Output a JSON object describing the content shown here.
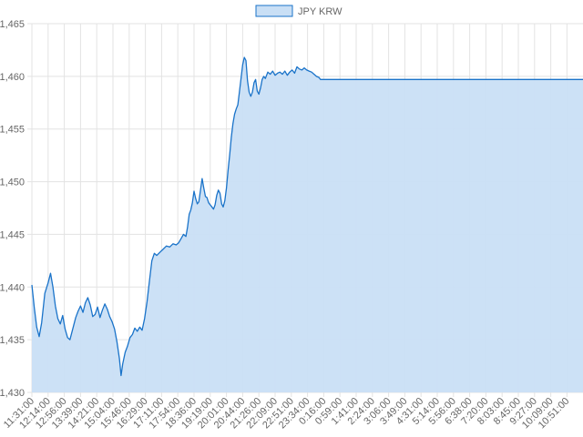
{
  "chart_data": {
    "type": "area",
    "title": "",
    "xlabel": "",
    "ylabel": "",
    "legend": {
      "position": "top-center",
      "entries": [
        "JPY KRW"
      ]
    },
    "grid": true,
    "ylim": [
      1430,
      1465
    ],
    "y_ticks": [
      1430,
      1435,
      1440,
      1445,
      1450,
      1455,
      1460,
      1465
    ],
    "y_tick_labels": [
      "1,430",
      "1,435",
      "1,440",
      "1,445",
      "1,450",
      "1,455",
      "1,460",
      "1,465"
    ],
    "x_tick_labels": [
      "11:31:00",
      "12:14:00",
      "12:56:00",
      "13:39:00",
      "14:21:00",
      "15:04:00",
      "15:46:00",
      "16:29:00",
      "17:11:00",
      "17:54:00",
      "18:36:00",
      "19:19:00",
      "20:01:00",
      "20:44:00",
      "21:26:00",
      "22:09:00",
      "22:51:00",
      "23:34:00",
      "0:16:00",
      "0:59:00",
      "1:41:00",
      "2:24:00",
      "3:06:00",
      "3:49:00",
      "4:31:00",
      "5:14:00",
      "5:56:00",
      "6:38:00",
      "7:20:00",
      "8:03:00",
      "8:45:00",
      "9:27:00",
      "10:09:00",
      "10:51:00"
    ],
    "series": [
      {
        "name": "JPY KRW",
        "color": "#1a73c9",
        "fill": "#c9dff5",
        "points": [
          [
            0,
            1440.2
          ],
          [
            0.15,
            1438.0
          ],
          [
            0.3,
            1436.2
          ],
          [
            0.45,
            1435.3
          ],
          [
            0.6,
            1436.6
          ],
          [
            0.8,
            1439.4
          ],
          [
            1.0,
            1440.4
          ],
          [
            1.15,
            1441.3
          ],
          [
            1.3,
            1440.0
          ],
          [
            1.45,
            1438.2
          ],
          [
            1.6,
            1437.0
          ],
          [
            1.75,
            1436.5
          ],
          [
            1.9,
            1437.3
          ],
          [
            2.05,
            1436.0
          ],
          [
            2.2,
            1435.2
          ],
          [
            2.35,
            1435.0
          ],
          [
            2.5,
            1435.9
          ],
          [
            2.7,
            1437.1
          ],
          [
            2.85,
            1437.7
          ],
          [
            3.0,
            1438.2
          ],
          [
            3.15,
            1437.6
          ],
          [
            3.3,
            1438.5
          ],
          [
            3.45,
            1439.0
          ],
          [
            3.6,
            1438.3
          ],
          [
            3.75,
            1437.2
          ],
          [
            3.9,
            1437.4
          ],
          [
            4.05,
            1438.1
          ],
          [
            4.2,
            1437.1
          ],
          [
            4.35,
            1437.8
          ],
          [
            4.5,
            1438.4
          ],
          [
            4.65,
            1437.9
          ],
          [
            4.8,
            1437.2
          ],
          [
            4.95,
            1436.7
          ],
          [
            5.1,
            1436.0
          ],
          [
            5.25,
            1434.8
          ],
          [
            5.4,
            1433.2
          ],
          [
            5.5,
            1431.6
          ],
          [
            5.6,
            1432.7
          ],
          [
            5.75,
            1433.8
          ],
          [
            5.9,
            1434.4
          ],
          [
            6.05,
            1435.2
          ],
          [
            6.2,
            1435.5
          ],
          [
            6.35,
            1436.1
          ],
          [
            6.5,
            1435.8
          ],
          [
            6.65,
            1436.2
          ],
          [
            6.8,
            1435.9
          ],
          [
            6.95,
            1437.0
          ],
          [
            7.1,
            1438.6
          ],
          [
            7.25,
            1440.6
          ],
          [
            7.4,
            1442.5
          ],
          [
            7.55,
            1443.2
          ],
          [
            7.7,
            1443.0
          ],
          [
            7.9,
            1443.3
          ],
          [
            8.1,
            1443.6
          ],
          [
            8.3,
            1443.9
          ],
          [
            8.5,
            1443.8
          ],
          [
            8.7,
            1444.1
          ],
          [
            8.9,
            1444.0
          ],
          [
            9.05,
            1444.2
          ],
          [
            9.2,
            1444.6
          ],
          [
            9.35,
            1445.0
          ],
          [
            9.5,
            1444.8
          ],
          [
            9.6,
            1445.7
          ],
          [
            9.7,
            1446.9
          ],
          [
            9.8,
            1447.3
          ],
          [
            9.9,
            1448.0
          ],
          [
            10.0,
            1449.1
          ],
          [
            10.1,
            1448.4
          ],
          [
            10.2,
            1447.9
          ],
          [
            10.3,
            1448.1
          ],
          [
            10.4,
            1449.2
          ],
          [
            10.5,
            1450.3
          ],
          [
            10.6,
            1449.4
          ],
          [
            10.7,
            1448.6
          ],
          [
            10.8,
            1448.5
          ],
          [
            10.9,
            1448.0
          ],
          [
            11.0,
            1447.8
          ],
          [
            11.1,
            1447.6
          ],
          [
            11.2,
            1447.4
          ],
          [
            11.3,
            1447.8
          ],
          [
            11.4,
            1448.7
          ],
          [
            11.5,
            1449.2
          ],
          [
            11.6,
            1448.9
          ],
          [
            11.7,
            1447.9
          ],
          [
            11.8,
            1447.6
          ],
          [
            11.9,
            1448.2
          ],
          [
            12.0,
            1449.4
          ],
          [
            12.1,
            1451.1
          ],
          [
            12.2,
            1452.6
          ],
          [
            12.3,
            1454.2
          ],
          [
            12.4,
            1455.5
          ],
          [
            12.5,
            1456.4
          ],
          [
            12.6,
            1456.9
          ],
          [
            12.7,
            1457.3
          ],
          [
            12.8,
            1458.5
          ],
          [
            12.9,
            1459.8
          ],
          [
            13.0,
            1461.1
          ],
          [
            13.1,
            1461.8
          ],
          [
            13.2,
            1461.5
          ],
          [
            13.3,
            1459.6
          ],
          [
            13.4,
            1458.5
          ],
          [
            13.5,
            1458.1
          ],
          [
            13.6,
            1458.5
          ],
          [
            13.7,
            1459.4
          ],
          [
            13.8,
            1459.7
          ],
          [
            13.9,
            1458.6
          ],
          [
            14.0,
            1458.3
          ],
          [
            14.1,
            1458.9
          ],
          [
            14.2,
            1459.7
          ],
          [
            14.3,
            1460.0
          ],
          [
            14.4,
            1459.8
          ],
          [
            14.55,
            1460.4
          ],
          [
            14.7,
            1460.2
          ],
          [
            14.85,
            1460.5
          ],
          [
            15.0,
            1460.1
          ],
          [
            15.15,
            1460.3
          ],
          [
            15.3,
            1460.4
          ],
          [
            15.45,
            1460.2
          ],
          [
            15.6,
            1460.5
          ],
          [
            15.75,
            1460.1
          ],
          [
            15.9,
            1460.4
          ],
          [
            16.05,
            1460.6
          ],
          [
            16.2,
            1460.3
          ],
          [
            16.35,
            1460.9
          ],
          [
            16.5,
            1460.7
          ],
          [
            16.65,
            1460.6
          ],
          [
            16.8,
            1460.8
          ],
          [
            16.95,
            1460.6
          ],
          [
            17.1,
            1460.5
          ],
          [
            17.25,
            1460.4
          ],
          [
            17.4,
            1460.2
          ],
          [
            17.55,
            1460.0
          ],
          [
            17.7,
            1459.9
          ],
          [
            17.8,
            1459.7
          ],
          [
            34.1,
            1459.7
          ]
        ]
      }
    ]
  }
}
